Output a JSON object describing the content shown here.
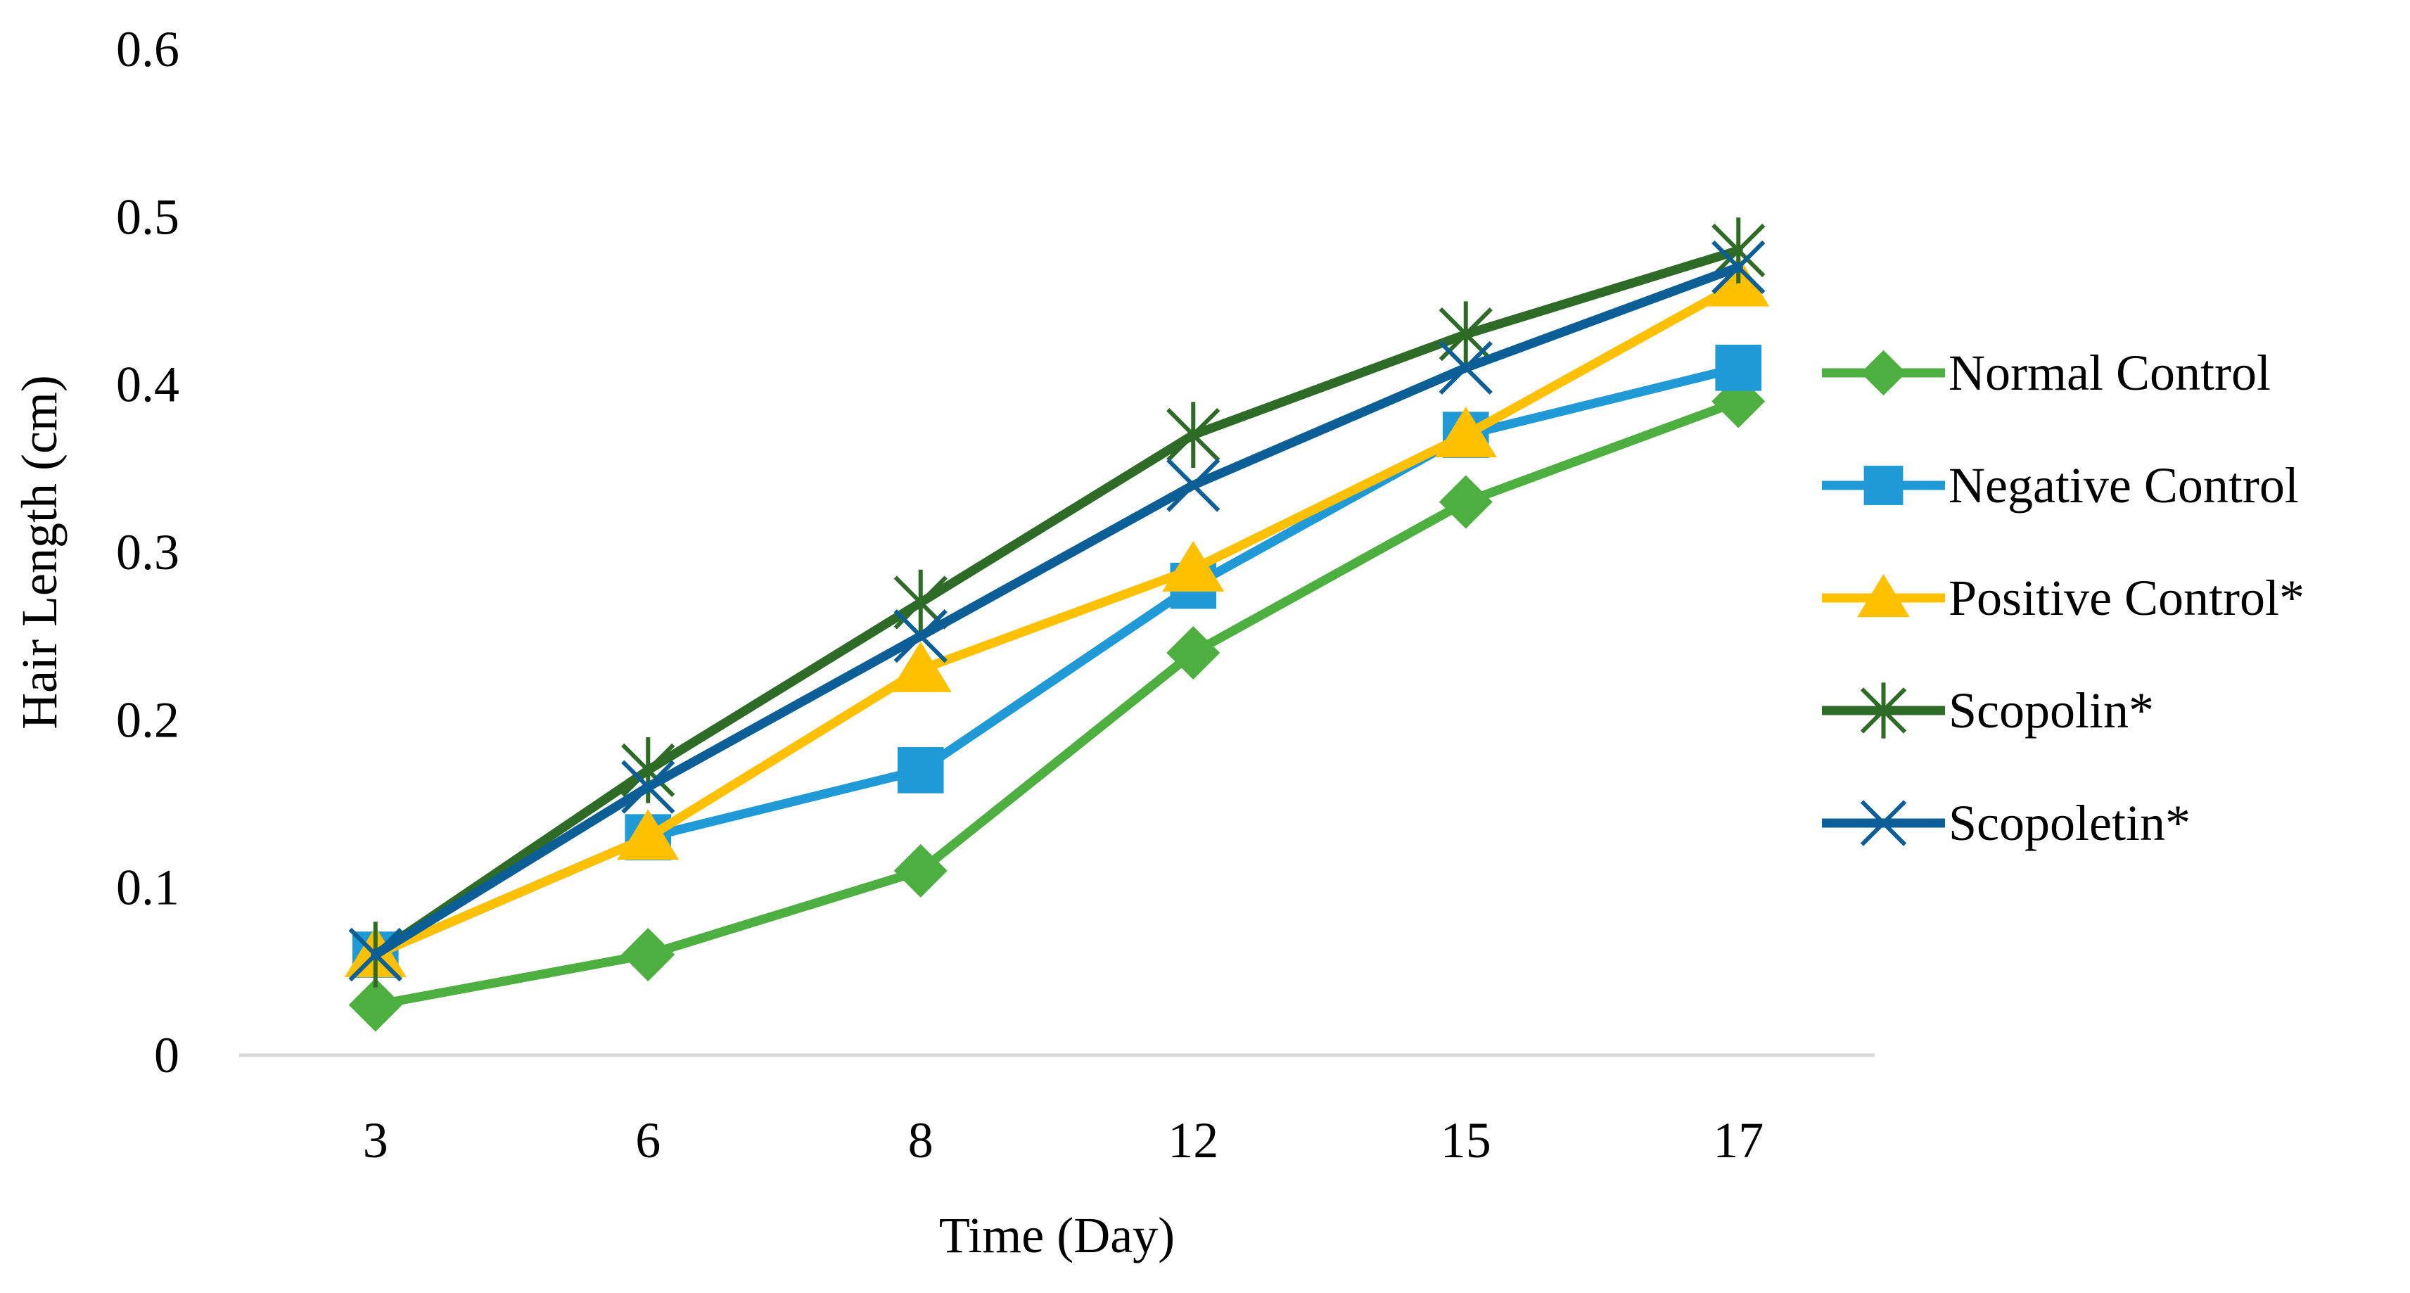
{
  "chart_data": {
    "type": "line",
    "title": "",
    "xlabel": "Time (Day)",
    "ylabel": "Hair Length (cm)",
    "categories": [
      "3",
      "6",
      "8",
      "12",
      "15",
      "17"
    ],
    "ylim": [
      0,
      0.6
    ],
    "yticks": [
      "0",
      "0.1",
      "0.2",
      "0.3",
      "0.4",
      "0.5",
      "0.6"
    ],
    "grid": false,
    "legend_position": "right",
    "series": [
      {
        "name": "Normal Control",
        "marker": "diamond",
        "color": "#4caf3f",
        "values": [
          0.03,
          0.06,
          0.11,
          0.24,
          0.33,
          0.39
        ]
      },
      {
        "name": "Negative Control",
        "marker": "square",
        "color": "#1f9ad6",
        "values": [
          0.06,
          0.13,
          0.17,
          0.28,
          0.37,
          0.41
        ]
      },
      {
        "name": "Positive Control*",
        "marker": "triangle",
        "color": "#ffc000",
        "values": [
          0.06,
          0.13,
          0.23,
          0.29,
          0.37,
          0.46
        ]
      },
      {
        "name": "Scopolin*",
        "marker": "star",
        "color": "#2e6b27",
        "values": [
          0.06,
          0.17,
          0.27,
          0.37,
          0.43,
          0.48
        ]
      },
      {
        "name": "Scopoletin*",
        "marker": "x",
        "color": "#0b5f96",
        "values": [
          0.06,
          0.16,
          0.25,
          0.34,
          0.41,
          0.47
        ]
      }
    ]
  }
}
